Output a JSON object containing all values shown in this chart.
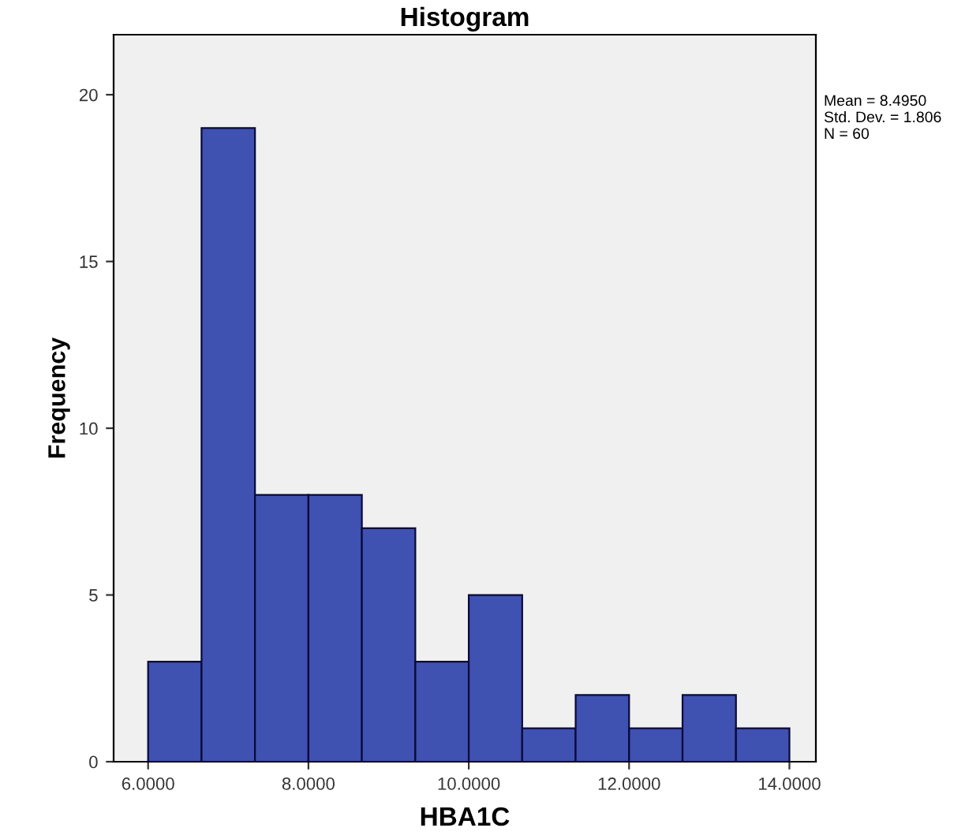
{
  "chart_data": {
    "type": "histogram",
    "title": "Histogram",
    "xlabel": "HBA1C",
    "ylabel": "Frequency",
    "bins": [
      6.0,
      6.6667,
      7.3333,
      8.0,
      8.6667,
      9.3333,
      10.0,
      10.6667,
      11.3333,
      12.0,
      12.6667,
      13.3333,
      14.0
    ],
    "values": [
      3,
      19,
      8,
      8,
      7,
      3,
      5,
      1,
      2,
      1,
      2,
      1
    ],
    "color": "#3f51b1",
    "xlim": [
      5.57,
      14.33
    ],
    "ylim": [
      0,
      21.8
    ],
    "xticks": [
      {
        "value": 6,
        "label": "6.0000"
      },
      {
        "value": 8,
        "label": "8.0000"
      },
      {
        "value": 10,
        "label": "10.0000"
      },
      {
        "value": 12,
        "label": "12.0000"
      },
      {
        "value": 14,
        "label": "14.0000"
      }
    ],
    "yticks": [
      0,
      5,
      10,
      15,
      20
    ],
    "annotations": [
      "Mean = 8.4950\nStd. Dev. = 1.806\nN = 60"
    ],
    "legend": false
  }
}
